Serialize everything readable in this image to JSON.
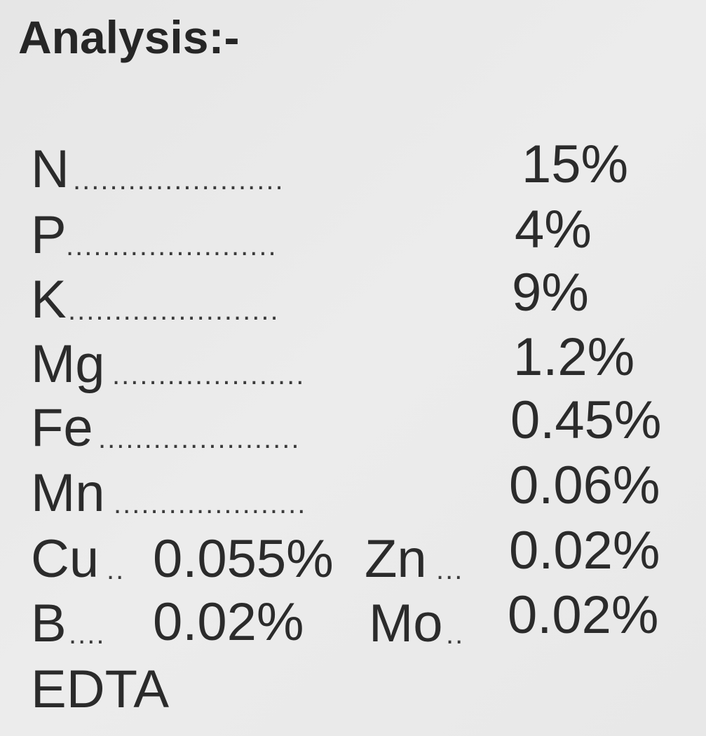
{
  "title": "Analysis:-",
  "rows": [
    {
      "label": "N",
      "leader": ".......................",
      "value": "15%"
    },
    {
      "label": "P",
      "leader": ".......................",
      "value": "4%"
    },
    {
      "label": "K",
      "leader": ".......................",
      "value": "9%"
    },
    {
      "label": "Mg",
      "leader": ".....................",
      "value": "1.2%"
    },
    {
      "label": "Fe",
      "leader": "......................",
      "value": "0.45%"
    },
    {
      "label": "Mn",
      "leader": ".....................",
      "value": "0.06%"
    }
  ],
  "pairs": [
    {
      "label1": "Cu",
      "leader1": "..",
      "value1": "0.055%",
      "label2": "Zn",
      "leader2": "...",
      "value2": "0.02%"
    },
    {
      "label1": "B",
      "leader1": "....",
      "value1": "0.02%",
      "label2": "Mo",
      "leader2": "..",
      "value2": "0.02%"
    }
  ],
  "footer": "EDTA"
}
